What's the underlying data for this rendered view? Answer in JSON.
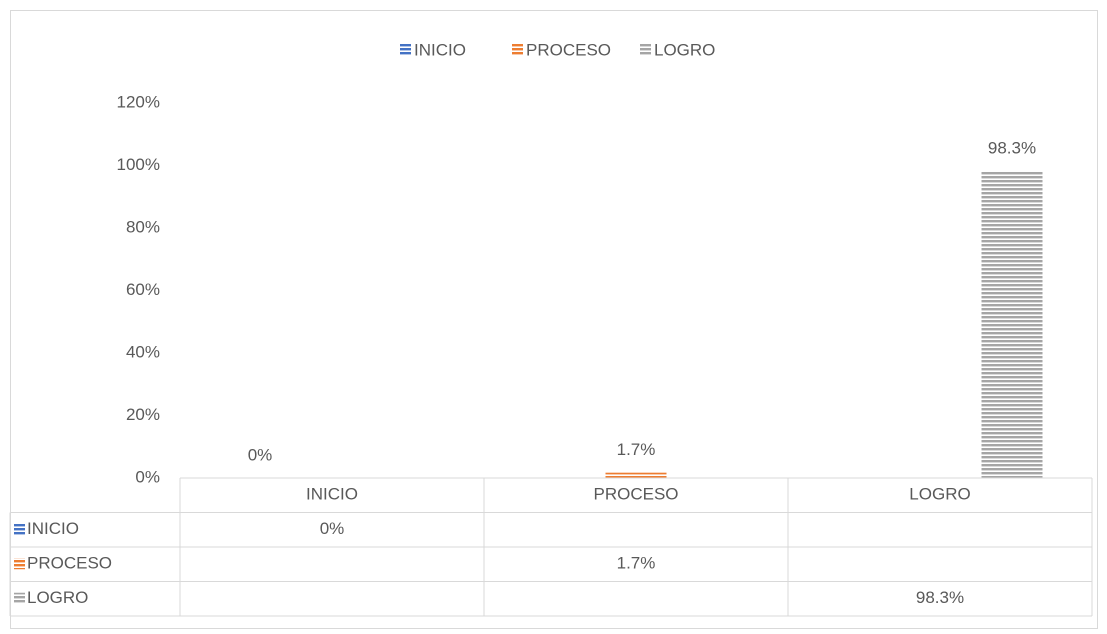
{
  "chart_data": {
    "type": "bar",
    "categories": [
      "INICIO",
      "PROCESO",
      "LOGRO"
    ],
    "series": [
      {
        "name": "INICIO",
        "color": "#4472c4",
        "values": [
          0,
          null,
          null
        ],
        "value_labels": [
          "0%",
          null,
          null
        ]
      },
      {
        "name": "PROCESO",
        "color": "#ed7d31",
        "values": [
          null,
          1.7,
          null
        ],
        "value_labels": [
          null,
          "1.7%",
          null
        ]
      },
      {
        "name": "LOGRO",
        "color": "#a5a5a5",
        "values": [
          null,
          null,
          98.3
        ],
        "value_labels": [
          null,
          null,
          "98.3%"
        ]
      }
    ],
    "ylim": [
      0,
      120
    ],
    "yticks": [
      {
        "value": 0,
        "label": "0%"
      },
      {
        "value": 20,
        "label": "20%"
      },
      {
        "value": 40,
        "label": "40%"
      },
      {
        "value": 60,
        "label": "60%"
      },
      {
        "value": 80,
        "label": "80%"
      },
      {
        "value": 100,
        "label": "100%"
      },
      {
        "value": 120,
        "label": "120%"
      }
    ],
    "legend": "top",
    "data_table": true
  }
}
